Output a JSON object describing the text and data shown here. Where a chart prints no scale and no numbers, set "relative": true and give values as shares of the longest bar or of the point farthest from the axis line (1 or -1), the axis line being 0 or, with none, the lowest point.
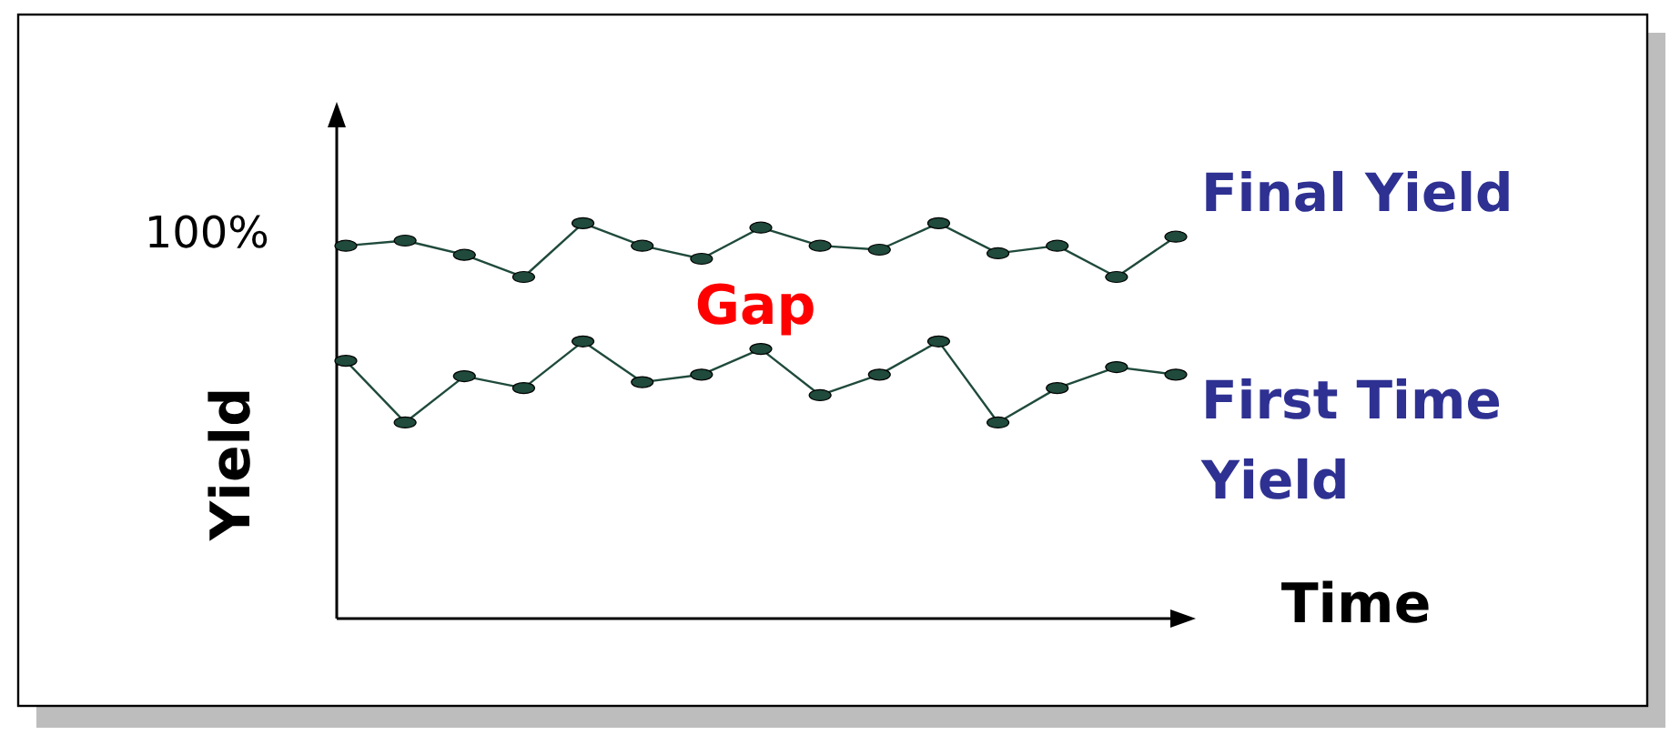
{
  "chart_data": {
    "type": "line",
    "relative": true,
    "xlabel": "Time",
    "ylabel": "Yield",
    "annotations": [
      "100%",
      "Gap"
    ],
    "categories": [
      null,
      null,
      null,
      null,
      null,
      null,
      null,
      null,
      null,
      null,
      null,
      null,
      null,
      null,
      null
    ],
    "marker": "circle",
    "line_style": "solid",
    "legend": "right",
    "series": [
      {
        "name": "Final Yield",
        "color": "#1f4a3c",
        "values": [
          0.943,
          0.956,
          0.92,
          0.864,
          1,
          0.943,
          0.91,
          0.989,
          0.943,
          0.933,
          1,
          0.924,
          0.943,
          0.864,
          0.966
        ]
      },
      {
        "name": "First Time Yield",
        "color": "#1f4a3c",
        "values": [
          0.652,
          0.496,
          0.613,
          0.583,
          0.701,
          0.598,
          0.617,
          0.682,
          0.565,
          0.617,
          0.701,
          0.496,
          0.583,
          0.636,
          0.617
        ]
      }
    ]
  }
}
